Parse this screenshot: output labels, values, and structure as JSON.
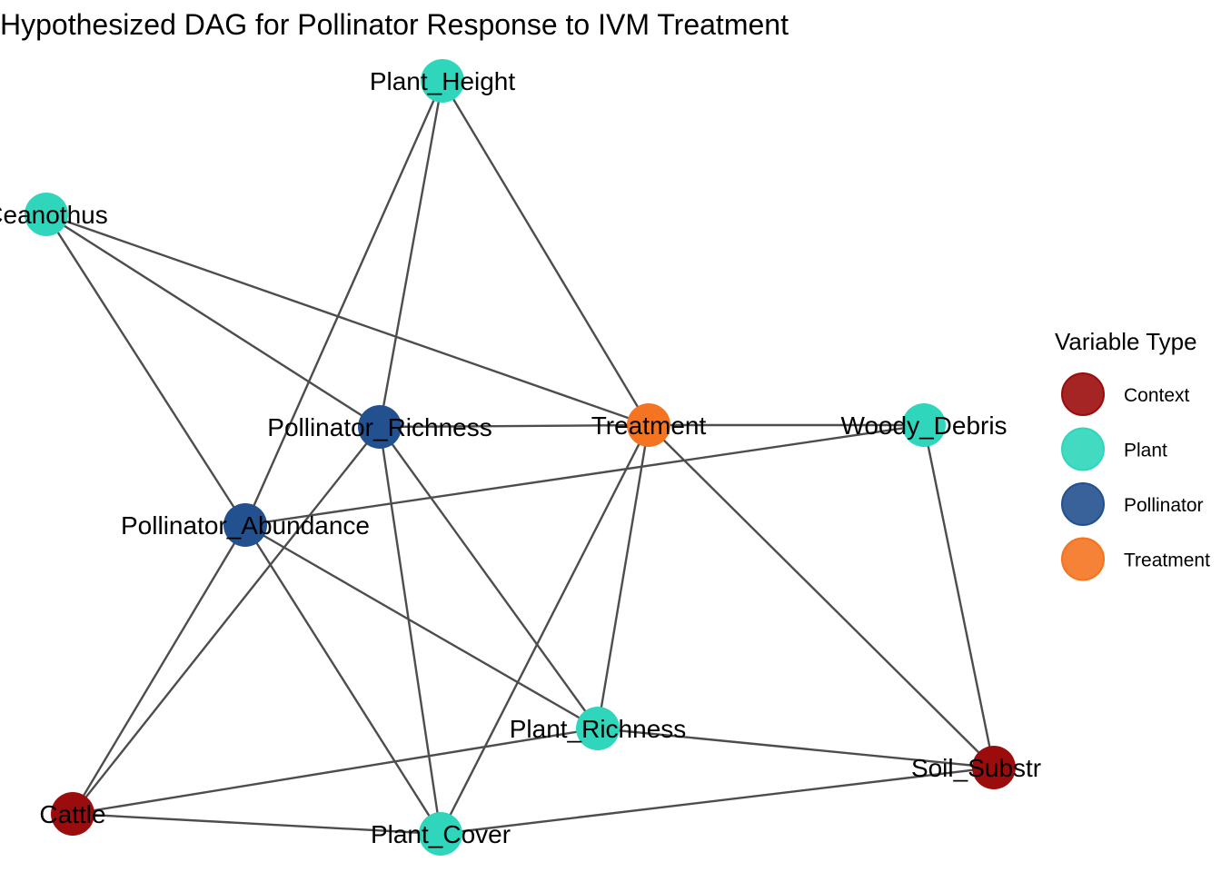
{
  "title": "Hypothesized DAG for Pollinator Response to IVM Treatment",
  "colors": {
    "Context": "#9b0d0d",
    "Plant": "#2fd6bb",
    "Pollinator": "#23508f",
    "Treatment": "#f47421",
    "edge": "#4d4d4d"
  },
  "legend": {
    "title": "Variable Type",
    "items": [
      {
        "type": "Context",
        "label": "Context"
      },
      {
        "type": "Plant",
        "label": "Plant"
      },
      {
        "type": "Pollinator",
        "label": "Pollinator"
      },
      {
        "type": "Treatment",
        "label": "Treatment"
      }
    ]
  },
  "nodes": [
    {
      "id": "Plant_Height",
      "label": "Plant_Height",
      "type": "Plant"
    },
    {
      "id": "Ceanothus",
      "label": "Ceanothus",
      "type": "Plant"
    },
    {
      "id": "Pollinator_Richness",
      "label": "Pollinator_Richness",
      "type": "Pollinator"
    },
    {
      "id": "Treatment",
      "label": "Treatment",
      "type": "Treatment"
    },
    {
      "id": "Woody_Debris",
      "label": "Woody_Debris",
      "type": "Plant"
    },
    {
      "id": "Pollinator_Abundance",
      "label": "Pollinator_Abundance",
      "type": "Pollinator"
    },
    {
      "id": "Plant_Richness",
      "label": "Plant_Richness",
      "type": "Plant"
    },
    {
      "id": "Soil_Substrate",
      "label": "Soil_Substrate",
      "type": "Context"
    },
    {
      "id": "Cattle",
      "label": "Cattle",
      "type": "Context"
    },
    {
      "id": "Plant_Cover",
      "label": "Plant_Cover",
      "type": "Plant"
    }
  ],
  "edges": [
    [
      "Plant_Height",
      "Treatment"
    ],
    [
      "Plant_Height",
      "Pollinator_Richness"
    ],
    [
      "Plant_Height",
      "Pollinator_Abundance"
    ],
    [
      "Ceanothus",
      "Treatment"
    ],
    [
      "Ceanothus",
      "Pollinator_Richness"
    ],
    [
      "Ceanothus",
      "Pollinator_Abundance"
    ],
    [
      "Pollinator_Richness",
      "Treatment"
    ],
    [
      "Pollinator_Richness",
      "Cattle"
    ],
    [
      "Pollinator_Richness",
      "Plant_Cover"
    ],
    [
      "Pollinator_Richness",
      "Plant_Richness"
    ],
    [
      "Treatment",
      "Woody_Debris"
    ],
    [
      "Treatment",
      "Plant_Richness"
    ],
    [
      "Treatment",
      "Plant_Cover"
    ],
    [
      "Treatment",
      "Soil_Substrate"
    ],
    [
      "Woody_Debris",
      "Pollinator_Abundance"
    ],
    [
      "Woody_Debris",
      "Soil_Substrate"
    ],
    [
      "Pollinator_Abundance",
      "Cattle"
    ],
    [
      "Pollinator_Abundance",
      "Plant_Cover"
    ],
    [
      "Pollinator_Abundance",
      "Plant_Richness"
    ],
    [
      "Plant_Richness",
      "Soil_Substrate"
    ],
    [
      "Plant_Richness",
      "Cattle"
    ],
    [
      "Soil_Substrate",
      "Plant_Cover"
    ],
    [
      "Cattle",
      "Plant_Cover"
    ]
  ]
}
